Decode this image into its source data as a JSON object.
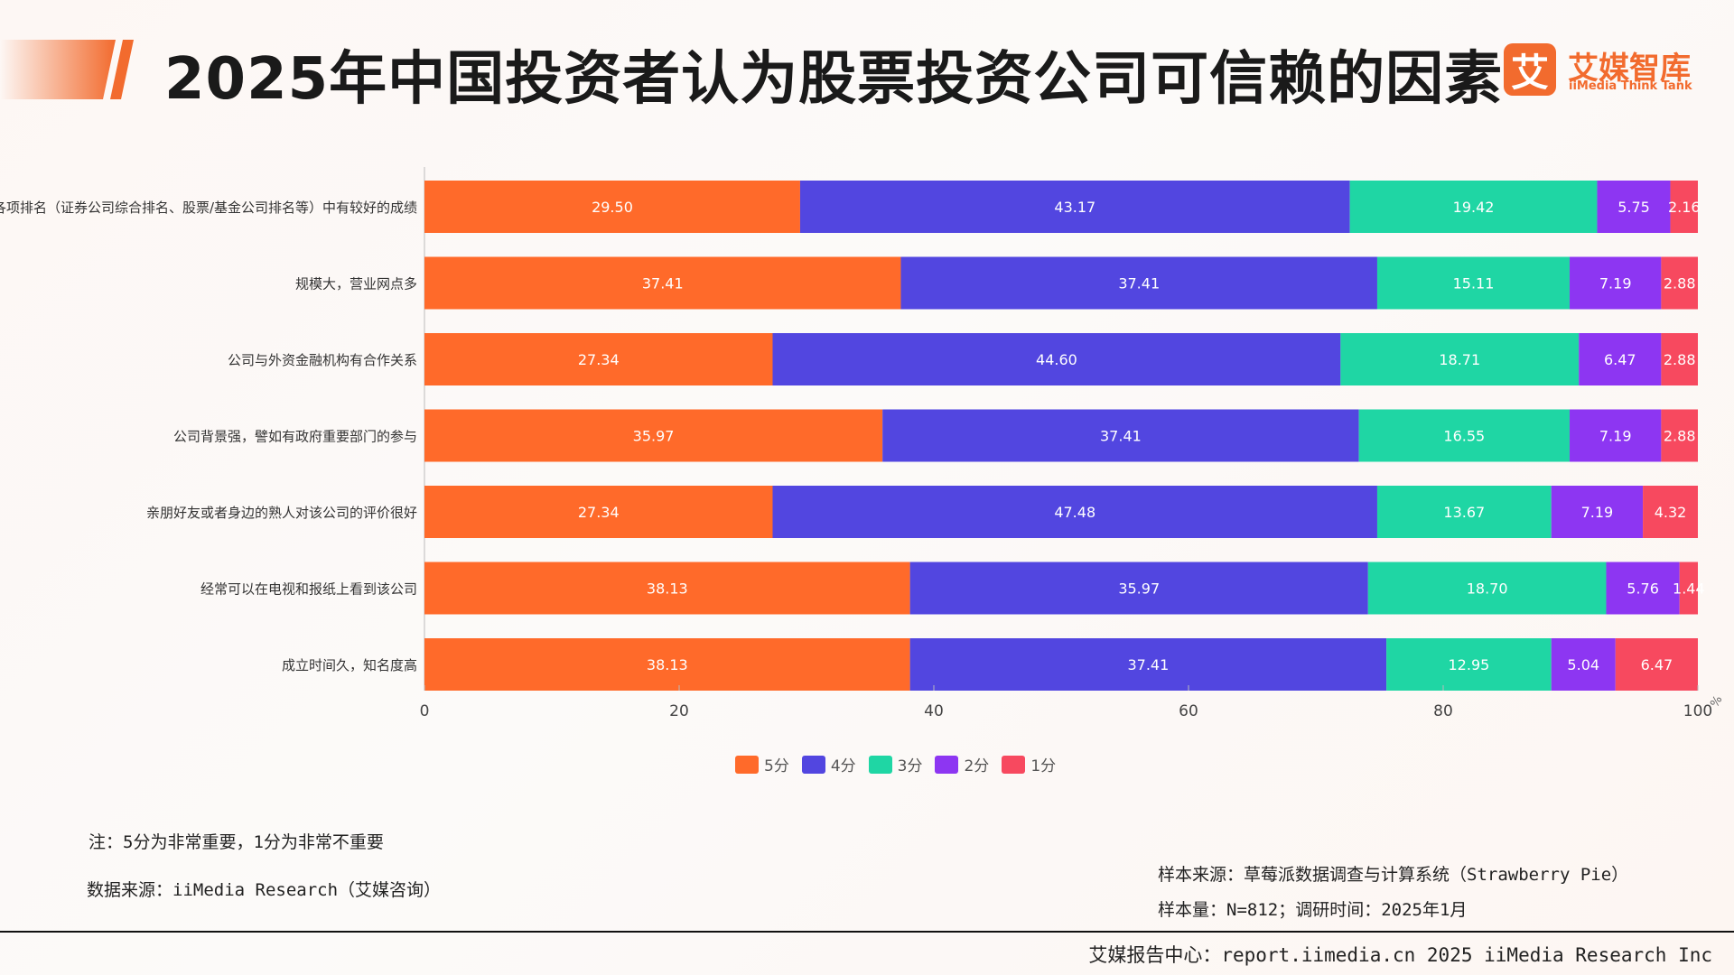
{
  "header": {
    "title": "2025年中国投资者认为股票投资公司可信赖的因素",
    "logo_cn": "艾媒智库",
    "logo_en": "iiMedia Think Tank",
    "logo_mark": "艾"
  },
  "colors": {
    "accent": "#f26b2e",
    "series": [
      "#ff6a2a",
      "#5246e0",
      "#1fd6a4",
      "#8d36f2",
      "#f7495f"
    ]
  },
  "chart_data": {
    "type": "bar",
    "orientation": "horizontal",
    "stacked": true,
    "title": "2025年中国投资者认为股票投资公司可信赖的因素",
    "categories": [
      "在各项排名（证券公司综合排名、股票/基金公司排名等）中有较好的成绩",
      "规模大，营业网点多",
      "公司与外资金融机构有合作关系",
      "公司背景强，譬如有政府重要部门的参与",
      "亲朋好友或者身边的熟人对该公司的评价很好",
      "经常可以在电视和报纸上看到该公司",
      "成立时间久，知名度高"
    ],
    "series": [
      {
        "name": "5分",
        "values": [
          29.5,
          37.41,
          27.34,
          35.97,
          27.34,
          38.13,
          38.13
        ]
      },
      {
        "name": "4分",
        "values": [
          43.17,
          37.41,
          44.6,
          37.41,
          47.48,
          35.97,
          37.41
        ]
      },
      {
        "name": "3分",
        "values": [
          19.42,
          15.11,
          18.71,
          16.55,
          13.67,
          18.7,
          12.95
        ]
      },
      {
        "name": "2分",
        "values": [
          5.75,
          7.19,
          6.47,
          7.19,
          7.19,
          5.76,
          5.04
        ]
      },
      {
        "name": "1分",
        "values": [
          2.16,
          2.88,
          2.88,
          2.88,
          4.32,
          1.44,
          6.47
        ]
      }
    ],
    "labels": [
      [
        "29.50",
        "37.41",
        "27.34",
        "35.97",
        "27.34",
        "38.13",
        "38.13"
      ],
      [
        "43.17",
        "37.41",
        "44.60",
        "37.41",
        "47.48",
        "35.97",
        "37.41"
      ],
      [
        "19.42",
        "15.11",
        "18.71",
        "16.55",
        "13.67",
        "18.70",
        "12.95"
      ],
      [
        "5.75",
        "7.19",
        "6.47",
        "7.19",
        "7.19",
        "5.76",
        "5.04"
      ],
      [
        "2.16",
        "2.88",
        "2.88",
        "2.88",
        "4.32",
        "1.44",
        "6.47"
      ]
    ],
    "xlim": [
      0,
      100
    ],
    "xticks": [
      "0",
      "20",
      "40",
      "60",
      "80",
      "100"
    ],
    "xunit": "%",
    "legend_position": "bottom-center",
    "grid": false
  },
  "notes": {
    "scale_note": "注：5分为非常重要，1分为非常不重要",
    "data_source": "数据来源：iiMedia Research（艾媒咨询）",
    "sample_source": "样本来源：草莓派数据调查与计算系统（Strawberry Pie）",
    "sample_size": "样本量：N=812；调研时间：2025年1月"
  },
  "footer": {
    "text": "艾媒报告中心：report.iimedia.cn 2025 iiMedia Research Inc"
  }
}
